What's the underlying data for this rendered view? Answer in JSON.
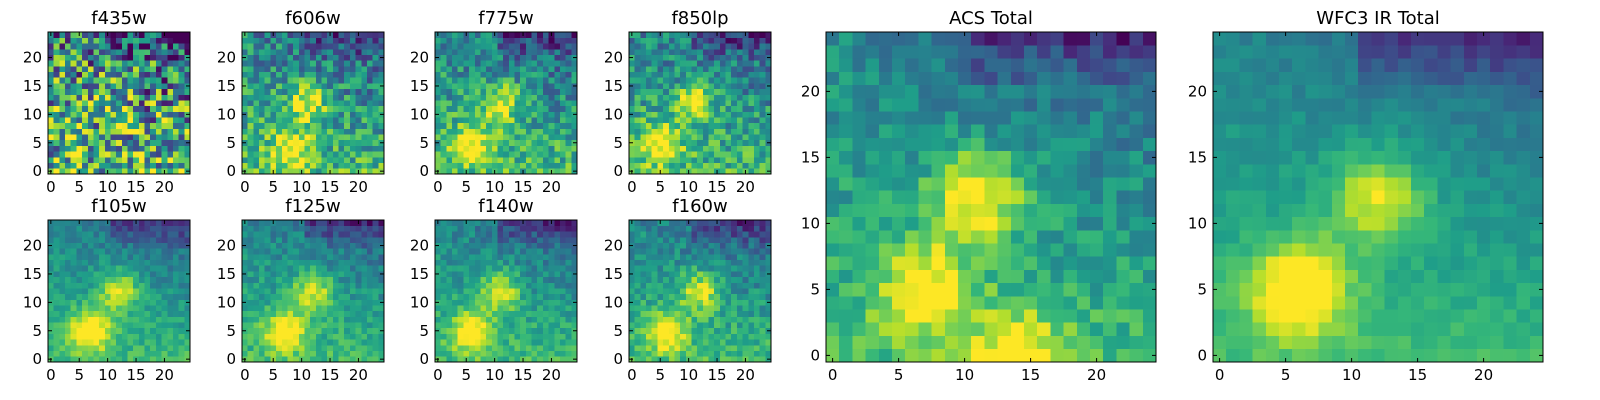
{
  "chart_data": [
    {
      "type": "heatmap",
      "title": "f435w",
      "xlim": [
        0,
        24
      ],
      "ylim": [
        0,
        24
      ],
      "xticks": [
        "0",
        "5",
        "10",
        "15",
        "20"
      ],
      "yticks": [
        "0",
        "5",
        "10",
        "15",
        "20"
      ],
      "noise": 0.55,
      "hot_spots": [
        [
          11,
          12,
          0.2
        ]
      ],
      "colormap": "viridis"
    },
    {
      "type": "heatmap",
      "title": "f606w",
      "xlim": [
        0,
        24
      ],
      "ylim": [
        0,
        24
      ],
      "xticks": [
        "0",
        "5",
        "10",
        "15",
        "20"
      ],
      "yticks": [
        "0",
        "5",
        "10",
        "15",
        "20"
      ],
      "noise": 0.28,
      "hot_spots": [
        [
          11,
          12,
          0.55
        ],
        [
          8,
          4,
          0.5
        ]
      ],
      "colormap": "viridis"
    },
    {
      "type": "heatmap",
      "title": "f775w",
      "xlim": [
        0,
        24
      ],
      "ylim": [
        0,
        24
      ],
      "xticks": [
        "0",
        "5",
        "10",
        "15",
        "20"
      ],
      "yticks": [
        "0",
        "5",
        "10",
        "15",
        "20"
      ],
      "noise": 0.25,
      "hot_spots": [
        [
          11,
          12,
          0.55
        ],
        [
          6,
          5,
          0.5
        ]
      ],
      "colormap": "viridis"
    },
    {
      "type": "heatmap",
      "title": "f850lp",
      "xlim": [
        0,
        24
      ],
      "ylim": [
        0,
        24
      ],
      "xticks": [
        "0",
        "5",
        "10",
        "15",
        "20"
      ],
      "yticks": [
        "0",
        "5",
        "10",
        "15",
        "20"
      ],
      "noise": 0.25,
      "hot_spots": [
        [
          11,
          12,
          0.5
        ],
        [
          5,
          5,
          0.55
        ]
      ],
      "colormap": "viridis"
    },
    {
      "type": "heatmap",
      "title": "f105w",
      "xlim": [
        0,
        24
      ],
      "ylim": [
        0,
        24
      ],
      "xticks": [
        "0",
        "5",
        "10",
        "15",
        "20"
      ],
      "yticks": [
        "0",
        "5",
        "10",
        "15",
        "20"
      ],
      "noise": 0.12,
      "hot_spots": [
        [
          12,
          12,
          0.5
        ],
        [
          7,
          5,
          0.65
        ]
      ],
      "colormap": "viridis"
    },
    {
      "type": "heatmap",
      "title": "f125w",
      "xlim": [
        0,
        24
      ],
      "ylim": [
        0,
        24
      ],
      "xticks": [
        "0",
        "5",
        "10",
        "15",
        "20"
      ],
      "yticks": [
        "0",
        "5",
        "10",
        "15",
        "20"
      ],
      "noise": 0.14,
      "hot_spots": [
        [
          12,
          12,
          0.5
        ],
        [
          7,
          5,
          0.6
        ]
      ],
      "colormap": "viridis"
    },
    {
      "type": "heatmap",
      "title": "f140w",
      "xlim": [
        0,
        24
      ],
      "ylim": [
        0,
        24
      ],
      "xticks": [
        "0",
        "5",
        "10",
        "15",
        "20"
      ],
      "yticks": [
        "0",
        "5",
        "10",
        "15",
        "20"
      ],
      "noise": 0.14,
      "hot_spots": [
        [
          11,
          12,
          0.5
        ],
        [
          6,
          5,
          0.6
        ]
      ],
      "colormap": "viridis"
    },
    {
      "type": "heatmap",
      "title": "f160w",
      "xlim": [
        0,
        24
      ],
      "ylim": [
        0,
        24
      ],
      "xticks": [
        "0",
        "5",
        "10",
        "15",
        "20"
      ],
      "yticks": [
        "0",
        "5",
        "10",
        "15",
        "20"
      ],
      "noise": 0.16,
      "hot_spots": [
        [
          12,
          12,
          0.5
        ],
        [
          6,
          5,
          0.6
        ]
      ],
      "colormap": "viridis"
    },
    {
      "type": "heatmap",
      "title": "ACS Total",
      "xlim": [
        0,
        24
      ],
      "ylim": [
        0,
        24
      ],
      "xticks": [
        "0",
        "5",
        "10",
        "15",
        "20"
      ],
      "yticks": [
        "0",
        "5",
        "10",
        "15",
        "20"
      ],
      "noise": 0.15,
      "hot_spots": [
        [
          11,
          12,
          0.6
        ],
        [
          7,
          5,
          0.55
        ],
        [
          14,
          0,
          0.5
        ]
      ],
      "colormap": "viridis"
    },
    {
      "type": "heatmap",
      "title": "WFC3 IR Total",
      "xlim": [
        0,
        24
      ],
      "ylim": [
        0,
        24
      ],
      "xticks": [
        "0",
        "5",
        "10",
        "15",
        "20"
      ],
      "yticks": [
        "0",
        "5",
        "10",
        "15",
        "20"
      ],
      "noise": 0.07,
      "hot_spots": [
        [
          12,
          12,
          0.5
        ],
        [
          6,
          5,
          0.7
        ]
      ],
      "colormap": "viridis"
    }
  ]
}
